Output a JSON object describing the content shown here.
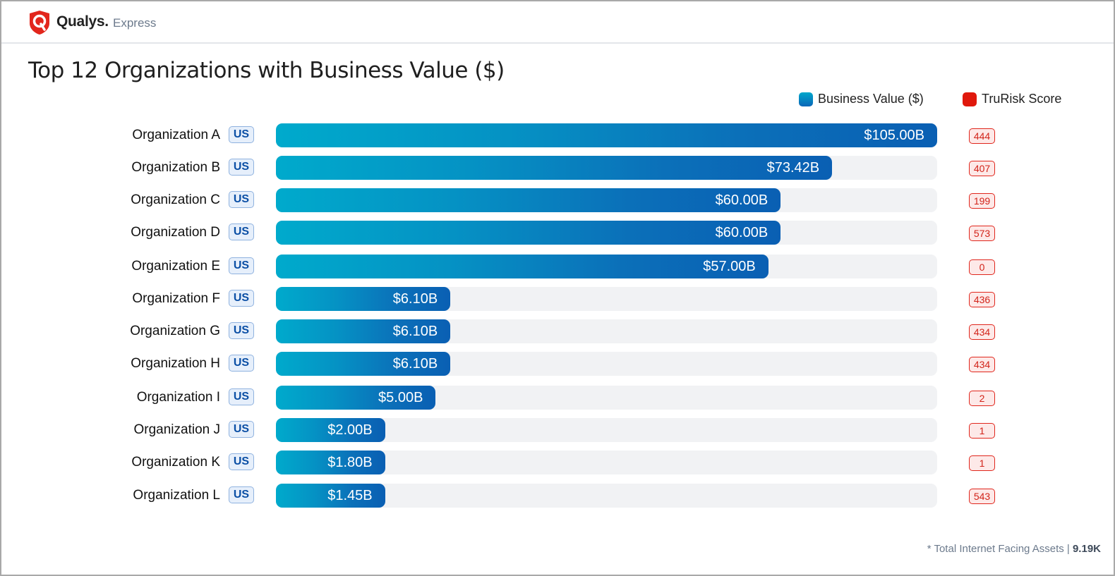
{
  "header": {
    "brand": "Qualys.",
    "product": "Express"
  },
  "legend": [
    {
      "label": "Business Value ($)",
      "icon": "blue-square"
    },
    {
      "label": "TruRisk Score",
      "icon": "red-square"
    }
  ],
  "footer": {
    "label": "* Total Internet Facing Assets |",
    "value": "9.19K"
  },
  "colors": {
    "bar_start": "#00aacc",
    "bar_end": "#0a5fb3",
    "track": "#f1f2f4",
    "risk": "#e0180c",
    "badge": "#0b4fa5"
  },
  "chart_data": {
    "type": "bar",
    "orientation": "horizontal",
    "title": "Top 12 Organizations with Business Value ($)",
    "xlabel": "",
    "ylabel": "",
    "legend_position": "top-right",
    "grid": false,
    "categories": [
      "Organization A",
      "Organization B",
      "Organization C",
      "Organization D",
      "Organization E",
      "Organization F",
      "Organization G",
      "Organization H",
      "Organization I",
      "Organization J",
      "Organization K",
      "Organization L"
    ],
    "countries": [
      "US",
      "US",
      "US",
      "US",
      "US",
      "US",
      "US",
      "US",
      "US",
      "US",
      "US",
      "US"
    ],
    "series": [
      {
        "name": "Business Value ($)",
        "unit": "B",
        "values": [
          105.0,
          73.42,
          60.0,
          60.0,
          57.0,
          6.1,
          6.1,
          6.1,
          5.0,
          2.0,
          1.8,
          1.45
        ],
        "labels": [
          "$105.00B",
          "$73.42B",
          "$60.00B",
          "$60.00B",
          "$57.00B",
          "$6.10B",
          "$6.10B",
          "$6.10B",
          "$5.00B",
          "$2.00B",
          "$1.80B",
          "$1.45B"
        ]
      },
      {
        "name": "TruRisk Score",
        "values": [
          444,
          407,
          199,
          573,
          0,
          436,
          434,
          434,
          2,
          1,
          1,
          543
        ]
      }
    ]
  }
}
